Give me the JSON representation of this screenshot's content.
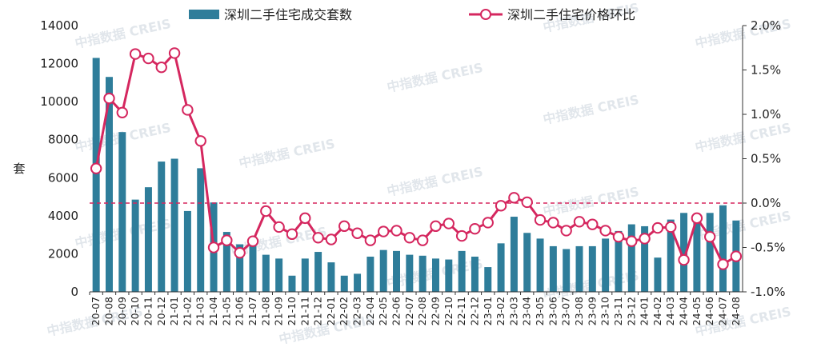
{
  "chart_data": {
    "type": "bar+line",
    "title": "",
    "watermark": "中指数据 CREIS",
    "ylabel_left": "套",
    "yticks_left": [
      "0",
      "2000",
      "4000",
      "6000",
      "8000",
      "10000",
      "12000",
      "14000"
    ],
    "ylim_left": [
      0,
      14000
    ],
    "yticks_right": [
      "2.0%",
      "1.5%",
      "1.0%",
      "0.5%",
      "0.0%",
      "-0.5%",
      "-1.0%"
    ],
    "ylim_right": [
      -1.0,
      2.0
    ],
    "legend_position": "top",
    "grid": false,
    "zero_reference_line": "dashed",
    "colors": {
      "bar": "#2e7d9a",
      "line": "#d5275f"
    },
    "categories": [
      "20-07",
      "20-08",
      "20-09",
      "20-10",
      "20-11",
      "20-12",
      "21-01",
      "21-02",
      "21-03",
      "21-04",
      "21-05",
      "21-06",
      "21-07",
      "21-08",
      "21-09",
      "21-10",
      "21-11",
      "21-12",
      "22-01",
      "22-02",
      "22-03",
      "22-04",
      "22-05",
      "22-06",
      "22-07",
      "22-08",
      "22-09",
      "22-10",
      "22-11",
      "22-12",
      "23-01",
      "23-02",
      "23-03",
      "23-04",
      "23-05",
      "23-06",
      "23-07",
      "23-08",
      "23-09",
      "23-10",
      "23-11",
      "23-12",
      "24-01",
      "24-02",
      "24-03",
      "24-04",
      "24-05",
      "24-06",
      "24-07",
      "24-08"
    ],
    "series": [
      {
        "name": "深圳二手住宅成交套数",
        "type": "bar",
        "axis": "left",
        "values": [
          12300,
          11300,
          8400,
          4850,
          5500,
          6850,
          7000,
          4250,
          6500,
          4700,
          3150,
          2500,
          2450,
          1950,
          1750,
          850,
          1750,
          2100,
          1550,
          850,
          950,
          1850,
          2200,
          2150,
          1950,
          1900,
          1750,
          1700,
          2150,
          1850,
          1300,
          2550,
          3950,
          3100,
          2800,
          2400,
          2250,
          2400,
          2400,
          2800,
          3200,
          3550,
          3450,
          1800,
          3800,
          4150,
          3650,
          4150,
          4550,
          3750
        ]
      },
      {
        "name": "深圳二手住宅价格环比",
        "type": "line",
        "axis": "right",
        "values": [
          0.39,
          1.18,
          1.02,
          1.68,
          1.63,
          1.53,
          1.69,
          1.05,
          0.7,
          -0.5,
          -0.42,
          -0.56,
          -0.43,
          -0.09,
          -0.27,
          -0.35,
          -0.17,
          -0.39,
          -0.41,
          -0.26,
          -0.34,
          -0.42,
          -0.32,
          -0.31,
          -0.39,
          -0.42,
          -0.26,
          -0.23,
          -0.37,
          -0.29,
          -0.22,
          -0.03,
          0.06,
          0.01,
          -0.19,
          -0.22,
          -0.31,
          -0.21,
          -0.24,
          -0.31,
          -0.38,
          -0.43,
          -0.4,
          -0.28,
          -0.27,
          -0.64,
          -0.17,
          -0.38,
          -0.69,
          -0.6
        ]
      }
    ]
  }
}
